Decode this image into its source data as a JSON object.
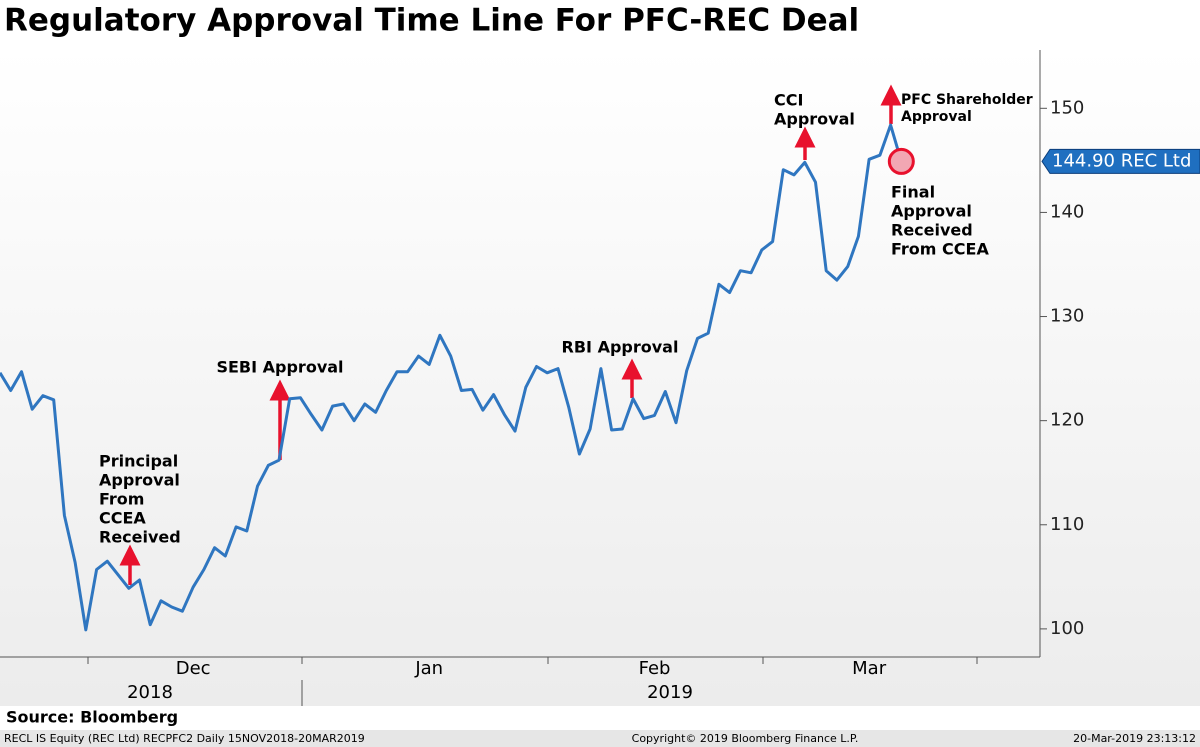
{
  "chart_data": {
    "type": "line",
    "title": "Regulatory Approval Time Line For PFC-REC Deal",
    "categories": [
      null,
      null,
      null,
      null,
      null,
      null,
      null,
      null,
      null,
      null,
      null,
      null,
      null,
      null,
      null,
      null,
      null,
      null,
      "Dec",
      null,
      null,
      null,
      null,
      null,
      null,
      null,
      null,
      null,
      null,
      null,
      null,
      null,
      null,
      null,
      null,
      null,
      null,
      null,
      null,
      null,
      "Jan",
      null,
      null,
      null,
      null,
      null,
      null,
      null,
      null,
      null,
      null,
      null,
      null,
      null,
      null,
      null,
      null,
      null,
      null,
      null,
      null,
      "Feb",
      null,
      null,
      null,
      null,
      null,
      null,
      null,
      null,
      null,
      null,
      null,
      null,
      null,
      null,
      null,
      null,
      null,
      null,
      null,
      "Mar",
      null,
      null,
      null
    ],
    "series": [
      {
        "name": "REC Ltd",
        "color": "#2f76c0",
        "values": [
          124.6,
          122.9,
          124.7,
          121.1,
          122.4,
          122.0,
          110.9,
          106.4,
          99.9,
          105.7,
          106.5,
          105.2,
          103.9,
          104.7,
          100.4,
          102.7,
          102.1,
          101.7,
          104.0,
          105.7,
          107.8,
          107.0,
          109.8,
          109.4,
          113.7,
          115.7,
          116.2,
          122.1,
          122.2,
          120.6,
          119.1,
          121.4,
          121.6,
          120.0,
          121.6,
          120.8,
          122.9,
          124.7,
          124.7,
          126.2,
          125.4,
          128.2,
          126.2,
          122.9,
          123.0,
          121.0,
          122.5,
          120.6,
          119.0,
          123.2,
          125.2,
          124.6,
          125.0,
          121.3,
          116.8,
          119.2,
          125.0,
          119.1,
          119.2,
          122.1,
          120.2,
          120.5,
          122.8,
          119.8,
          124.8,
          127.9,
          128.4,
          133.1,
          132.3,
          134.4,
          134.2,
          136.4,
          137.2,
          144.1,
          143.6,
          144.8,
          142.9,
          134.4,
          133.5,
          134.8,
          137.7,
          145.1,
          145.5,
          148.4,
          144.9
        ]
      }
    ],
    "last_label": {
      "value": 144.9,
      "label": "144.90 REC Ltd"
    },
    "years": [
      "2018",
      "2019"
    ],
    "ylim": [
      97.3,
      155.6
    ],
    "yticks": [
      100,
      110,
      120,
      130,
      140,
      150
    ],
    "annotations": [
      {
        "lines": [
          "Principal",
          "Approval",
          "From",
          "CCEA",
          "Received"
        ]
      },
      {
        "lines": [
          "SEBI Approval"
        ]
      },
      {
        "lines": [
          "RBI Approval"
        ]
      },
      {
        "lines": [
          "CCI",
          "Approval"
        ]
      },
      {
        "lines": [
          "PFC Shareholder",
          "Approval"
        ]
      },
      {
        "lines": [
          "Final",
          "Approval",
          "Received",
          "From CCEA"
        ]
      }
    ],
    "source": "Source: Bloomberg",
    "footer": [
      "RECL IS Equity (REC Ltd) RECPFC2  Daily 15NOV2018-20MAR2019",
      "Copyright© 2019 Bloomberg Finance L.P.",
      "20-Mar-2019 23:13:12"
    ]
  }
}
